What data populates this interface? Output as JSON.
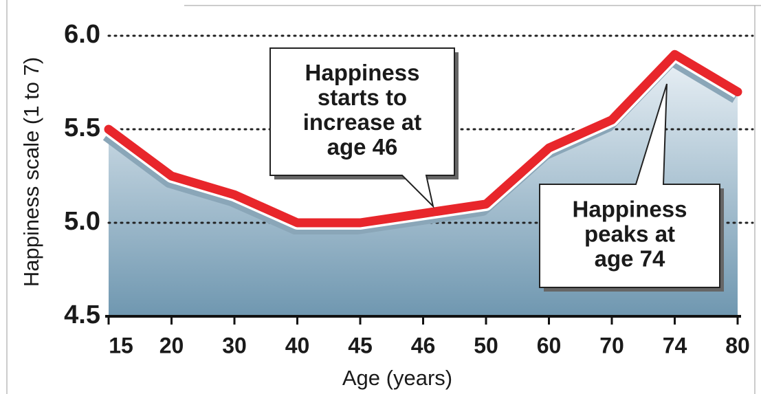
{
  "chart_data": {
    "type": "line",
    "categories": [
      "15",
      "20",
      "30",
      "40",
      "45",
      "46",
      "50",
      "60",
      "70",
      "74",
      "80"
    ],
    "values": [
      5.5,
      5.25,
      5.15,
      5.0,
      5.0,
      5.05,
      5.1,
      5.4,
      5.55,
      5.9,
      5.7
    ],
    "color": "#e8262b",
    "ylim": [
      4.5,
      6.0
    ],
    "yticks": [
      {
        "value": 4.5,
        "label": "4.5"
      },
      {
        "value": 5.0,
        "label": "5.0"
      },
      {
        "value": 5.5,
        "label": "5.5"
      },
      {
        "value": 6.0,
        "label": "6.0"
      }
    ],
    "grid": true,
    "xlabel": "Age (years)",
    "ylabel": "Happiness scale (1 to 7)",
    "annotations": [
      {
        "text": [
          "Happiness",
          "starts to",
          "increase at",
          "age 46"
        ],
        "category": 5
      },
      {
        "text": [
          "Happiness",
          "peaks at",
          "age 74"
        ],
        "category": 9
      }
    ]
  }
}
